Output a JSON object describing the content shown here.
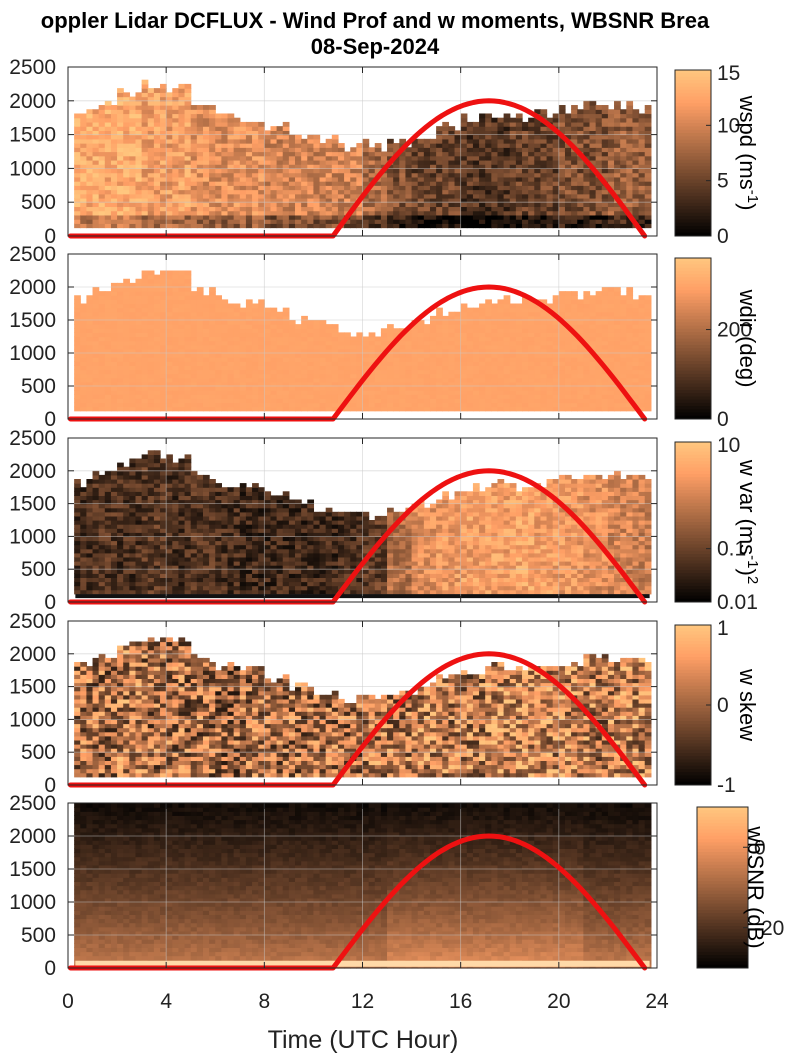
{
  "figure": {
    "title_line1": "oppler Lidar DCFLUX - Wind Prof and w moments, WBSNR Brea",
    "title_line2": "08-Sep-2024",
    "xlabel": "Time (UTC Hour)"
  },
  "chart_data": [
    {
      "type": "heatmap",
      "panel": 1,
      "x_range": [
        0,
        24
      ],
      "ylim": [
        0,
        2500
      ],
      "yticks": [
        "0",
        "500",
        "1000",
        "1500",
        "2000",
        "2500"
      ],
      "colorbar": {
        "label": "wspd (ms",
        "label_sup": "-1",
        "label_tail": ")",
        "range": [
          0,
          15
        ],
        "ticks": [
          "0",
          "5",
          "10",
          "15"
        ]
      },
      "colormap": "copper",
      "data_top_m_by_hour": [
        1800,
        1950,
        2100,
        2200,
        2150,
        1900,
        1750,
        1700,
        1600,
        1500,
        1400,
        1300,
        1300,
        1350,
        1450,
        1600,
        1700,
        1750,
        1750,
        1800,
        1850,
        1900,
        1900,
        1850
      ],
      "mean_value_by_hour": [
        13,
        13,
        13,
        12,
        12,
        11,
        11,
        11,
        10,
        10,
        10,
        10,
        8,
        6,
        5,
        5,
        4,
        4,
        5,
        5,
        6,
        6,
        7,
        7
      ],
      "grid": true
    },
    {
      "type": "heatmap",
      "panel": 2,
      "x_range": [
        0,
        24
      ],
      "ylim": [
        0,
        2500
      ],
      "yticks": [
        "0",
        "500",
        "1000",
        "1500",
        "2000",
        "2500"
      ],
      "colorbar": {
        "label": "wdir (deg)",
        "range": [
          0,
          360
        ],
        "ticks": [
          "0",
          "200"
        ]
      },
      "colormap": "copper",
      "data_top_m_by_hour": [
        1800,
        1950,
        2100,
        2200,
        2150,
        1900,
        1750,
        1700,
        1600,
        1500,
        1400,
        1300,
        1300,
        1350,
        1450,
        1600,
        1700,
        1750,
        1750,
        1800,
        1850,
        1900,
        1900,
        1850
      ],
      "mean_value_by_hour": [
        320,
        320,
        320,
        320,
        320,
        320,
        320,
        320,
        320,
        320,
        320,
        320,
        320,
        320,
        320,
        320,
        320,
        320,
        320,
        320,
        320,
        320,
        320,
        320
      ],
      "grid": true
    },
    {
      "type": "heatmap",
      "panel": 3,
      "x_range": [
        0,
        24
      ],
      "ylim": [
        0,
        2500
      ],
      "yticks": [
        "0",
        "500",
        "1000",
        "1500",
        "2000",
        "2500"
      ],
      "colorbar": {
        "label": "w var (ms",
        "label_sup": "-1",
        "label_tail": ")",
        "label_sup2": "2",
        "scale": "log",
        "range": [
          0.01,
          10
        ],
        "ticks": [
          "0.01",
          "0.1",
          "10"
        ]
      },
      "colormap": "copper",
      "data_top_m_by_hour": [
        1800,
        1950,
        2100,
        2200,
        2150,
        1900,
        1750,
        1700,
        1600,
        1500,
        1400,
        1300,
        1300,
        1350,
        1450,
        1600,
        1700,
        1750,
        1750,
        1800,
        1850,
        1900,
        1900,
        1850
      ],
      "mean_value_by_hour": [
        0.05,
        0.06,
        0.05,
        0.07,
        0.05,
        0.06,
        0.05,
        0.04,
        0.04,
        0.04,
        0.04,
        0.05,
        0.08,
        0.5,
        1.5,
        2,
        2.5,
        2.5,
        3,
        2.5,
        2,
        1.5,
        1,
        0.8
      ],
      "grid": true
    },
    {
      "type": "heatmap",
      "panel": 4,
      "x_range": [
        0,
        24
      ],
      "ylim": [
        0,
        2500
      ],
      "yticks": [
        "0",
        "500",
        "1000",
        "1500",
        "2000",
        "2500"
      ],
      "colorbar": {
        "label": "w skew",
        "range": [
          -1,
          1
        ],
        "ticks": [
          "-1",
          "0",
          "1"
        ]
      },
      "colormap": "copper",
      "data_top_m_by_hour": [
        1800,
        1950,
        2100,
        2200,
        2150,
        1900,
        1750,
        1700,
        1600,
        1500,
        1400,
        1300,
        1300,
        1350,
        1450,
        1600,
        1700,
        1750,
        1750,
        1800,
        1850,
        1900,
        1900,
        1850
      ],
      "mean_value_by_hour": [
        0.1,
        0.1,
        0.2,
        0.1,
        0.1,
        0.1,
        0.0,
        0.1,
        0.1,
        0.1,
        0.1,
        0.1,
        0.2,
        0.2,
        0.3,
        0.2,
        0.2,
        0.3,
        0.4,
        0.3,
        0.3,
        0.2,
        0.3,
        0.3
      ],
      "grid": true
    },
    {
      "type": "heatmap",
      "panel": 5,
      "x_range": [
        0,
        24
      ],
      "ylim": [
        0,
        2500
      ],
      "yticks": [
        "0",
        "500",
        "1000",
        "1500",
        "2000",
        "2500"
      ],
      "colorbar": {
        "label": "wbSNR (dB)",
        "range": [
          -30,
          10
        ],
        "ticks": [
          "-20",
          "0"
        ]
      },
      "colormap": "copper",
      "snr_top_db": -28,
      "snr_bottom_db": -5,
      "grid": true
    }
  ],
  "overlay": {
    "name": "solar elevation curve",
    "color": "#ee1111",
    "x_start": 10.8,
    "x_peak": 17.1,
    "x_end": 23.5,
    "peak_height_m": 2000
  },
  "xaxis": {
    "ticks": [
      "0",
      "4",
      "8",
      "12",
      "16",
      "20",
      "24"
    ],
    "values": [
      0,
      4,
      8,
      12,
      16,
      20,
      24
    ]
  }
}
